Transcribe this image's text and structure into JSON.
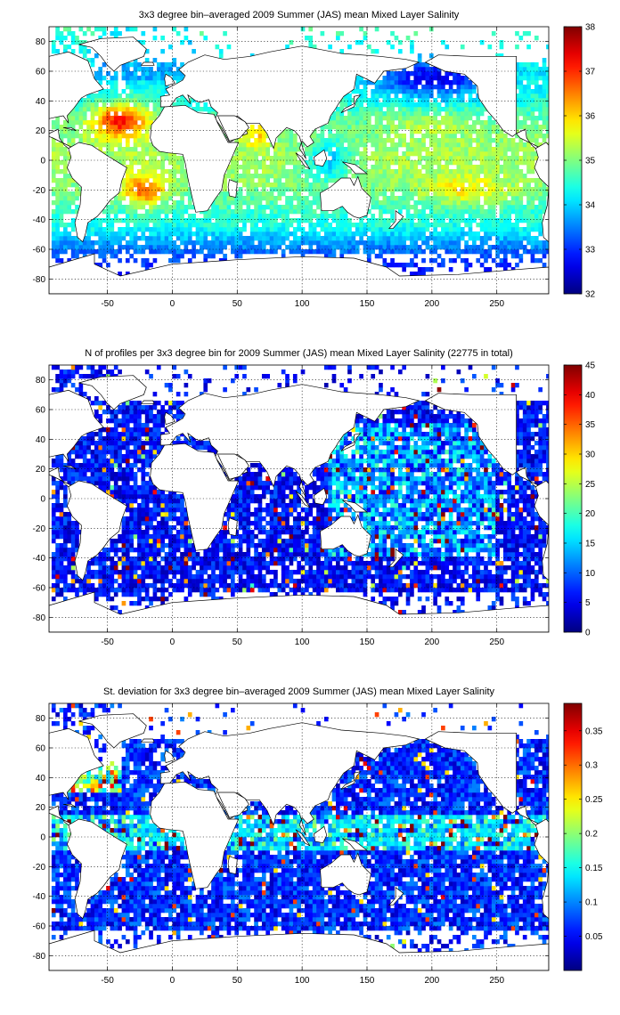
{
  "chart_data": [
    {
      "type": "heatmap",
      "title": "3x3 degree bin–averaged 2009 Summer (JAS) mean Mixed Layer Salinity",
      "xlim": [
        -95,
        290
      ],
      "ylim": [
        -90,
        90
      ],
      "xticks": [
        -50,
        0,
        50,
        100,
        150,
        200,
        250
      ],
      "yticks": [
        80,
        60,
        40,
        20,
        0,
        -20,
        -40,
        -60,
        -80
      ],
      "colorbar": {
        "min": 32,
        "max": 38,
        "ticks": [
          38,
          37,
          36,
          35,
          34,
          33,
          32
        ],
        "colormap": "jet"
      },
      "grid": true,
      "value_kind": "salinity",
      "summary": "High salinity (36-38) in subtropical North and South Atlantic and Arabian Sea; values ~34-35.5 across most open ocean; low values (32-33.5) in subpolar North Pacific and Southern Ocean"
    },
    {
      "type": "heatmap",
      "title": "N of profiles per 3x3 degree bin for 2009 Summer (JAS) mean Mixed Layer Salinity  (22775 in total)",
      "xlim": [
        -95,
        290
      ],
      "ylim": [
        -90,
        90
      ],
      "xticks": [
        -50,
        0,
        50,
        100,
        150,
        200,
        250
      ],
      "yticks": [
        80,
        60,
        40,
        20,
        0,
        -20,
        -40,
        -60,
        -80
      ],
      "colorbar": {
        "min": 0,
        "max": 45,
        "ticks": [
          45,
          40,
          35,
          30,
          25,
          20,
          15,
          10,
          5,
          0
        ],
        "colormap": "jet"
      },
      "grid": true,
      "value_kind": "count",
      "summary": "Mostly 1-10 profiles per bin; scattered higher counts (20-45) in western North Pacific and Kuroshio region"
    },
    {
      "type": "heatmap",
      "title": "St. deviation for 3x3 degree bin–averaged 2009 Summer (JAS) mean Mixed Layer Salinity",
      "xlim": [
        -95,
        290
      ],
      "ylim": [
        -90,
        90
      ],
      "xticks": [
        -50,
        0,
        50,
        100,
        150,
        200,
        250
      ],
      "yticks": [
        80,
        60,
        40,
        20,
        0,
        -20,
        -40,
        -60,
        -80
      ],
      "colorbar": {
        "min": 0,
        "max": 0.39,
        "ticks": [
          0.35,
          0.3,
          0.25,
          0.2,
          0.15,
          0.1,
          0.05
        ],
        "colormap": "jet"
      },
      "grid": true,
      "value_kind": "std",
      "summary": "Mostly below 0.1; elevated values (0.2-0.39) near Gulf Stream, tropical Pacific and Indian Ocean"
    }
  ]
}
